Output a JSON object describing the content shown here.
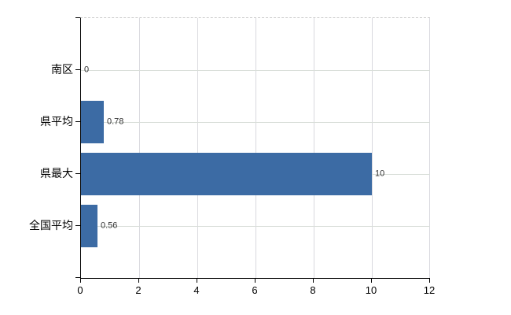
{
  "chart_data": {
    "type": "bar",
    "orientation": "horizontal",
    "title": "",
    "xlabel": "",
    "ylabel": "",
    "categories": [
      "南区",
      "県平均",
      "県最大",
      "全国平均"
    ],
    "values": [
      0,
      0.78,
      10,
      0.56
    ],
    "data_labels": [
      "0",
      "0.78",
      "10",
      "0.56"
    ],
    "xlim": [
      0,
      12
    ],
    "x_ticks": [
      0,
      2,
      4,
      6,
      8,
      10,
      12
    ],
    "x_tick_labels": [
      "0",
      "2",
      "4",
      "6",
      "8",
      "10",
      "12"
    ],
    "grid": true,
    "legend": false,
    "colors": {
      "bar": "#3c6ba4",
      "grid_vertical": "#d9d9de",
      "grid_horizontal": "#d9ded9",
      "plot_top_border": "#c9c9c9",
      "axis": "#000000",
      "tick_label": "#000000",
      "value_label": "#333333",
      "background": "#ffffff"
    }
  }
}
